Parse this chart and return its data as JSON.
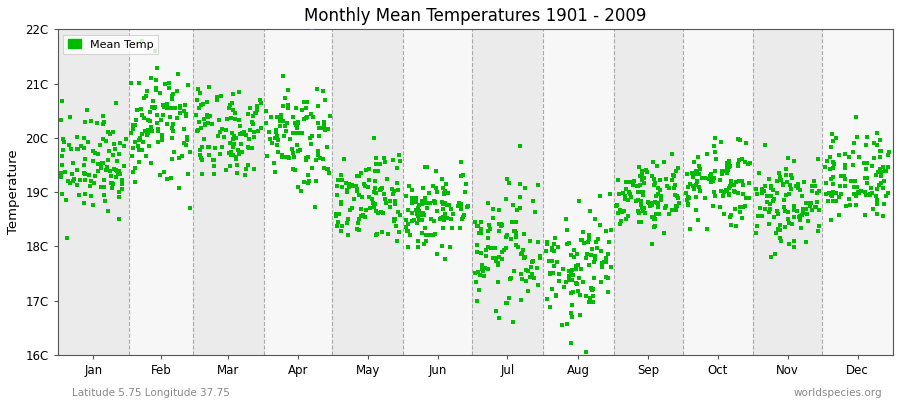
{
  "title": "Monthly Mean Temperatures 1901 - 2009",
  "ylabel": "Temperature",
  "lat_lon_label": "Latitude 5.75 Longitude 37.75",
  "watermark": "worldspecies.org",
  "ylim": [
    16,
    22
  ],
  "yticks": [
    16,
    17,
    18,
    19,
    20,
    21,
    22
  ],
  "ytick_labels": [
    "16C",
    "17C",
    "18C",
    "19C",
    "20C",
    "21C",
    "22C"
  ],
  "month_names": [
    "Jan",
    "Feb",
    "Mar",
    "Apr",
    "May",
    "Jun",
    "Jul",
    "Aug",
    "Sep",
    "Oct",
    "Nov",
    "Dec"
  ],
  "days_in_month": [
    31,
    28,
    31,
    30,
    31,
    30,
    31,
    31,
    30,
    31,
    30,
    31
  ],
  "marker_color": "#00bb00",
  "marker_size": 3.0,
  "legend_label": "Mean Temp",
  "bg_color": "#ffffff",
  "band_colors": [
    "#ebebeb",
    "#f7f7f7"
  ],
  "dashed_line_color": "#aaaaaa",
  "monthly_means": [
    19.5,
    20.2,
    20.1,
    20.1,
    18.9,
    18.7,
    18.0,
    17.6,
    18.9,
    19.2,
    18.8,
    19.3
  ],
  "monthly_stds": [
    0.45,
    0.55,
    0.45,
    0.5,
    0.45,
    0.4,
    0.55,
    0.6,
    0.35,
    0.38,
    0.42,
    0.4
  ],
  "n_years": 109,
  "seed": 12345
}
